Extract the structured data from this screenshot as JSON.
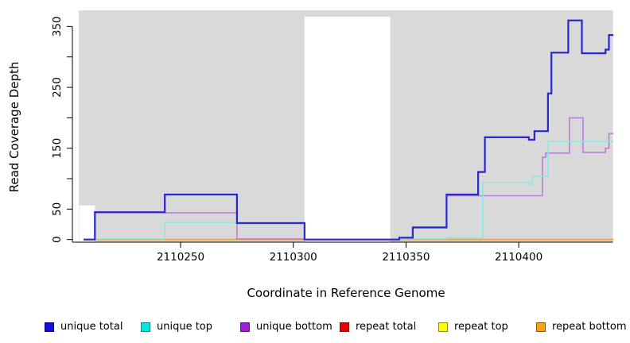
{
  "figure": {
    "background": "#ffffff",
    "plot_background": "#D9D9D9"
  },
  "chart_data": {
    "type": "line",
    "subtype": "step-coverage",
    "title": "",
    "xlabel": "Coordinate in Reference Genome",
    "ylabel": "Read Coverage Depth",
    "xlim": [
      2110203,
      2110442
    ],
    "ylim": [
      -4,
      376
    ],
    "grid": false,
    "legend_position": "bottom",
    "x_ticks": [
      2110250,
      2110300,
      2110350,
      2110400
    ],
    "x_tick_labels": [
      "2110250",
      "2110300",
      "2110350",
      "2110400"
    ],
    "y_ticks": [
      0,
      50,
      100,
      150,
      200,
      250,
      300,
      350
    ],
    "y_tick_labels": [
      "0",
      "50",
      "",
      "150",
      "",
      "250",
      "",
      "350"
    ],
    "no_coverage_gaps": [
      {
        "x1": 2110205,
        "x2": 2110212,
        "y_top": 56
      },
      {
        "x1": 2110305,
        "x2": 2110343,
        "y_top": 366
      }
    ],
    "series": [
      {
        "name": "unique total",
        "line_color": "#2727CE",
        "legend_fill": "#1111DD",
        "legend_border": "#000080",
        "points": [
          [
            2110207,
            0
          ],
          [
            2110212,
            45
          ],
          [
            2110243,
            74
          ],
          [
            2110275,
            27
          ],
          [
            2110305,
            0
          ],
          [
            2110347,
            3
          ],
          [
            2110353,
            20
          ],
          [
            2110368,
            74
          ],
          [
            2110382,
            111
          ],
          [
            2110385,
            168
          ],
          [
            2110404.5,
            164
          ],
          [
            2110407,
            178
          ],
          [
            2110413,
            240
          ],
          [
            2110414.5,
            307
          ],
          [
            2110422,
            360
          ],
          [
            2110428,
            306
          ],
          [
            2110438.5,
            312
          ],
          [
            2110440,
            336
          ],
          [
            2110442,
            336
          ]
        ]
      },
      {
        "name": "unique top",
        "line_color": "#8CE6E3",
        "legend_fill": "#00E5E5",
        "legend_border": "#008B8B",
        "points": [
          [
            2110207,
            0
          ],
          [
            2110212,
            1
          ],
          [
            2110243,
            28
          ],
          [
            2110305,
            0
          ],
          [
            2110347,
            1
          ],
          [
            2110368,
            3
          ],
          [
            2110384,
            94
          ],
          [
            2110404.5,
            90
          ],
          [
            2110406,
            104
          ],
          [
            2110413,
            161
          ],
          [
            2110442,
            161
          ]
        ]
      },
      {
        "name": "unique bottom",
        "line_color": "#B77FD7",
        "legend_fill": "#A21CD4",
        "legend_border": "#551A8B",
        "points": [
          [
            2110207,
            0
          ],
          [
            2110212,
            44
          ],
          [
            2110275,
            1
          ],
          [
            2110305,
            0
          ],
          [
            2110347,
            2
          ],
          [
            2110353,
            19
          ],
          [
            2110368,
            72
          ],
          [
            2110410.5,
            135
          ],
          [
            2110412,
            142
          ],
          [
            2110422.5,
            200
          ],
          [
            2110428.5,
            143
          ],
          [
            2110438.5,
            150
          ],
          [
            2110440,
            174
          ],
          [
            2110442,
            174
          ]
        ]
      },
      {
        "name": "repeat total",
        "line_color": "#DD0000",
        "legend_fill": "#EE0000",
        "legend_border": "#8B0000",
        "points": [
          [
            2110207,
            0
          ],
          [
            2110442,
            0
          ]
        ]
      },
      {
        "name": "repeat top",
        "line_color": "#EEEE00",
        "legend_fill": "#FFFF00",
        "legend_border": "#8B8B00",
        "points": [
          [
            2110207,
            0
          ],
          [
            2110442,
            0
          ]
        ]
      },
      {
        "name": "repeat bottom",
        "line_color": "#FF9E2C",
        "legend_fill": "#FFA013",
        "legend_border": "#8B5A00",
        "points": [
          [
            2110207,
            0
          ],
          [
            2110442,
            0
          ]
        ]
      }
    ]
  }
}
